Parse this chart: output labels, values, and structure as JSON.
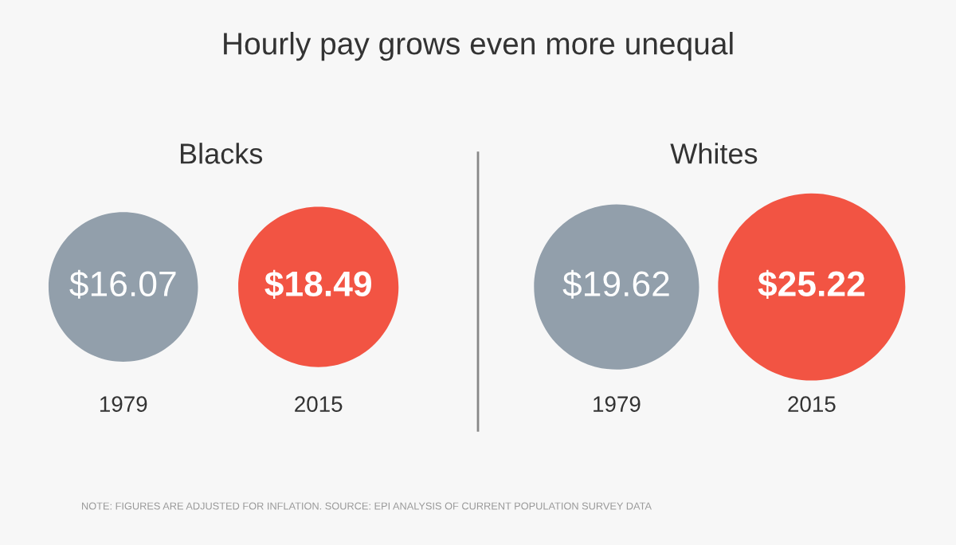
{
  "chart_data": [
    {
      "type": "other",
      "title": "Hourly pay grows even more unequal",
      "annotations": [
        "NOTE: FIGURES ARE ADJUSTED FOR INFLATION. SOURCE: EPI ANALYSIS OF CURRENT POPULATION SURVEY DATA"
      ]
    },
    {
      "type": "other",
      "title": "Blacks",
      "categories": [
        "1979",
        "2015"
      ],
      "values": [
        16.07,
        18.49
      ],
      "value_labels": [
        "$16.07",
        "$18.49"
      ],
      "colors": [
        "#929fab",
        "#f25443"
      ]
    },
    {
      "type": "other",
      "title": "Whites",
      "categories": [
        "1979",
        "2015"
      ],
      "values": [
        19.62,
        25.22
      ],
      "value_labels": [
        "$19.62",
        "$25.22"
      ],
      "colors": [
        "#929fab",
        "#f25443"
      ]
    }
  ]
}
